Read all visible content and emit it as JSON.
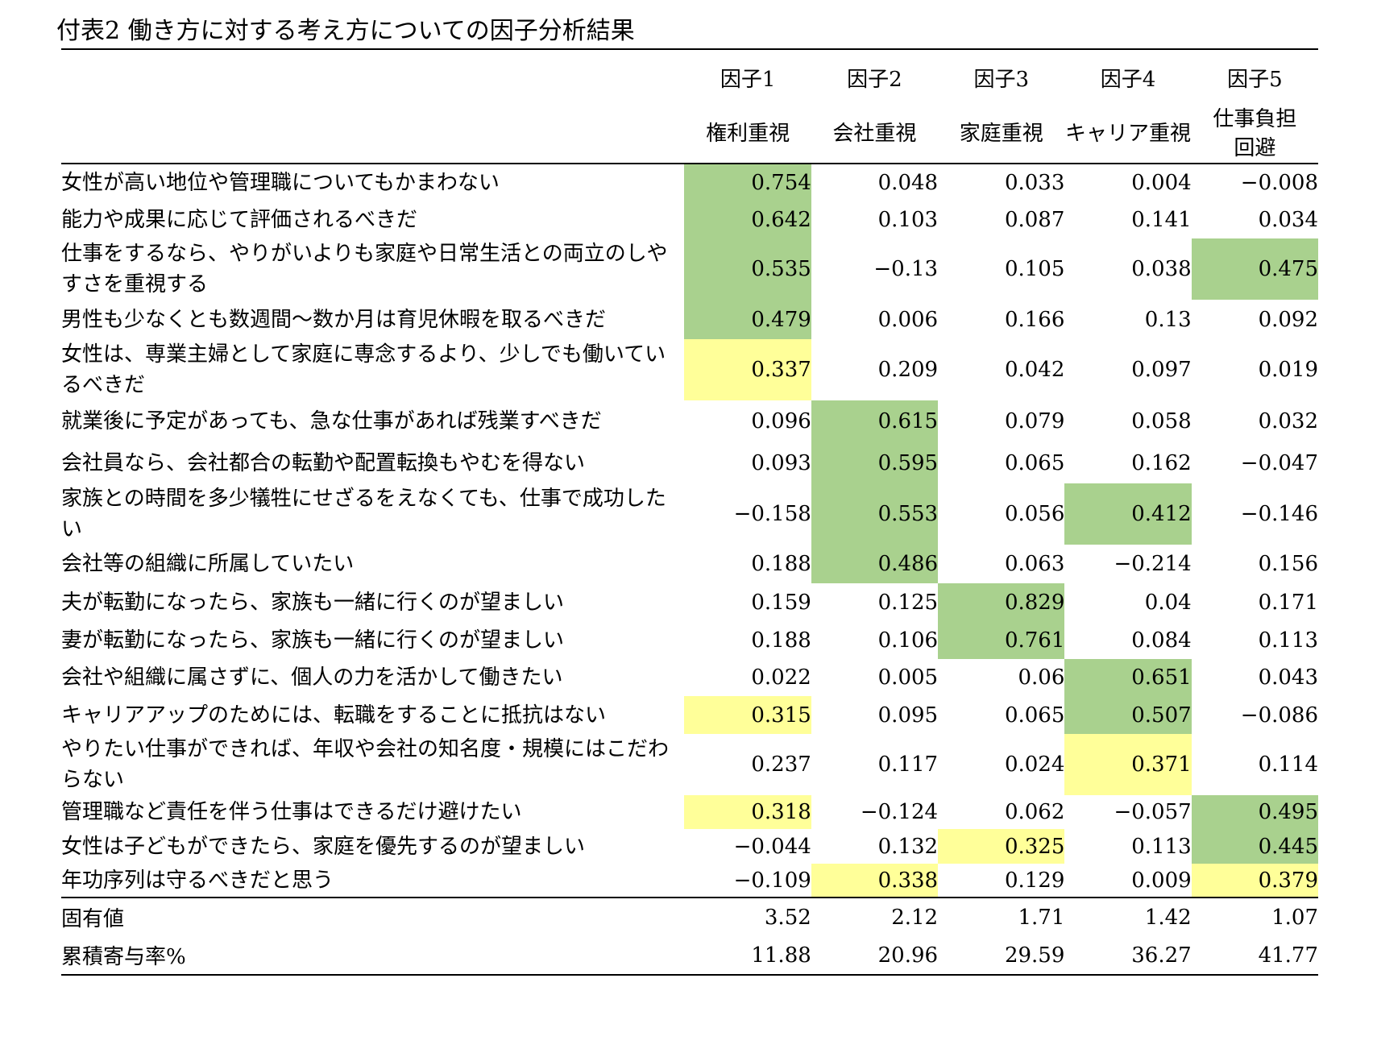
{
  "title": "付表2 働き方に対する考え方についての因子分析結果",
  "factors": [
    {
      "num": "因子1",
      "name": "権利重視"
    },
    {
      "num": "因子2",
      "name": "会社重視"
    },
    {
      "num": "因子3",
      "name": "家庭重視"
    },
    {
      "num": "因子4",
      "name": "キャリア重視"
    },
    {
      "num": "因子5",
      "name": "仕事負担\n回避"
    }
  ],
  "highlight_colors": {
    "green": "#a9d18e",
    "yellow": "#ffff99"
  },
  "rows": [
    {
      "label": "女性が高い地位や管理職についてもかまわない",
      "values": [
        "0.754",
        "0.048",
        "0.033",
        "0.004",
        "−0.008"
      ],
      "hl": [
        "green",
        "",
        "",
        "",
        ""
      ]
    },
    {
      "label": "能力や成果に応じて評価されるべきだ",
      "values": [
        "0.642",
        "0.103",
        "0.087",
        "0.141",
        "0.034"
      ],
      "hl": [
        "green",
        "",
        "",
        "",
        ""
      ]
    },
    {
      "label": "仕事をするなら、やりがいよりも家庭や日常生活との両立のしやすさを重視する",
      "values": [
        "0.535",
        "−0.13",
        "0.105",
        "0.038",
        "0.475"
      ],
      "hl": [
        "green",
        "",
        "",
        "",
        "green"
      ]
    },
    {
      "label": "男性も少なくとも数週間～数か月は育児休暇を取るべきだ",
      "values": [
        "0.479",
        "0.006",
        "0.166",
        "0.13",
        "0.092"
      ],
      "hl": [
        "green",
        "",
        "",
        "",
        ""
      ]
    },
    {
      "label": "女性は、専業主婦として家庭に専念するより、少しでも働いているべきだ",
      "values": [
        "0.337",
        "0.209",
        "0.042",
        "0.097",
        "0.019"
      ],
      "hl": [
        "yellow",
        "",
        "",
        "",
        ""
      ]
    },
    {
      "label": "就業後に予定があっても、急な仕事があれば残業すべきだ",
      "values": [
        "0.096",
        "0.615",
        "0.079",
        "0.058",
        "0.032"
      ],
      "hl": [
        "",
        "green",
        "",
        "",
        ""
      ]
    },
    {
      "label": "会社員なら、会社都合の転勤や配置転換もやむを得ない",
      "values": [
        "0.093",
        "0.595",
        "0.065",
        "0.162",
        "−0.047"
      ],
      "hl": [
        "",
        "green",
        "",
        "",
        ""
      ]
    },
    {
      "label": "家族との時間を多少犠牲にせざるをえなくても、仕事で成功したい",
      "values": [
        "−0.158",
        "0.553",
        "0.056",
        "0.412",
        "−0.146"
      ],
      "hl": [
        "",
        "green",
        "",
        "green",
        ""
      ]
    },
    {
      "label": "会社等の組織に所属していたい",
      "values": [
        "0.188",
        "0.486",
        "0.063",
        "−0.214",
        "0.156"
      ],
      "hl": [
        "",
        "green",
        "",
        "",
        ""
      ]
    },
    {
      "label": "夫が転勤になったら、家族も一緒に行くのが望ましい",
      "values": [
        "0.159",
        "0.125",
        "0.829",
        "0.04",
        "0.171"
      ],
      "hl": [
        "",
        "",
        "green",
        "",
        ""
      ]
    },
    {
      "label": "妻が転勤になったら、家族も一緒に行くのが望ましい",
      "values": [
        "0.188",
        "0.106",
        "0.761",
        "0.084",
        "0.113"
      ],
      "hl": [
        "",
        "",
        "green",
        "",
        ""
      ]
    },
    {
      "label": "会社や組織に属さずに、個人の力を活かして働きたい",
      "values": [
        "0.022",
        "0.005",
        "0.06",
        "0.651",
        "0.043"
      ],
      "hl": [
        "",
        "",
        "",
        "green",
        ""
      ]
    },
    {
      "label": "キャリアアップのためには、転職をすることに抵抗はない",
      "values": [
        "0.315",
        "0.095",
        "0.065",
        "0.507",
        "−0.086"
      ],
      "hl": [
        "yellow",
        "",
        "",
        "green",
        ""
      ]
    },
    {
      "label": "やりたい仕事ができれば、年収や会社の知名度・規模にはこだわらない",
      "values": [
        "0.237",
        "0.117",
        "0.024",
        "0.371",
        "0.114"
      ],
      "hl": [
        "",
        "",
        "",
        "yellow",
        ""
      ]
    },
    {
      "label": "管理職など責任を伴う仕事はできるだけ避けたい",
      "values": [
        "0.318",
        "−0.124",
        "0.062",
        "−0.057",
        "0.495"
      ],
      "hl": [
        "yellow",
        "",
        "",
        "",
        "green"
      ]
    },
    {
      "label": "女性は子どもができたら、家庭を優先するのが望ましい",
      "values": [
        "−0.044",
        "0.132",
        "0.325",
        "0.113",
        "0.445"
      ],
      "hl": [
        "",
        "",
        "yellow",
        "",
        "green"
      ]
    },
    {
      "label": "年功序列は守るべきだと思う",
      "values": [
        "−0.109",
        "0.338",
        "0.129",
        "0.009",
        "0.379"
      ],
      "hl": [
        "",
        "yellow",
        "",
        "",
        "yellow"
      ]
    }
  ],
  "footer": [
    {
      "label": "固有値",
      "values": [
        "3.52",
        "2.12",
        "1.71",
        "1.42",
        "1.07"
      ]
    },
    {
      "label": "累積寄与率%",
      "values": [
        "11.88",
        "20.96",
        "29.59",
        "36.27",
        "41.77"
      ]
    }
  ]
}
